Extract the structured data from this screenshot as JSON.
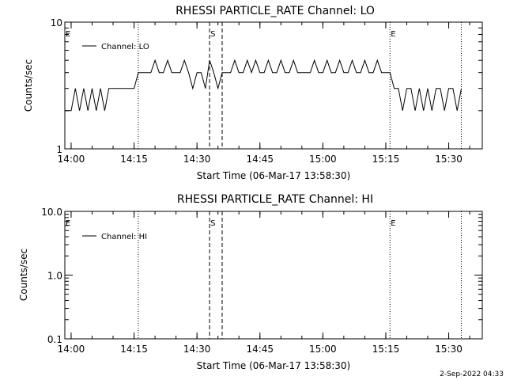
{
  "colors": {
    "background": "#ffffff",
    "foreground": "#000000"
  },
  "footer": {
    "timestamp": "2-Sep-2022 04:33"
  },
  "markers": {
    "dotted": [
      "14:16",
      "15:16",
      "15:33"
    ],
    "dashed": [
      "14:33",
      "14:36"
    ],
    "flags": [
      {
        "label": "E",
        "time": "13:58:30"
      },
      {
        "label": "S",
        "time": "14:33"
      },
      {
        "label": "E",
        "time": "15:16"
      }
    ]
  },
  "chart_data": [
    {
      "type": "line",
      "title": "RHESSI PARTICLE_RATE Channel: LO",
      "xlabel": "Start Time (06-Mar-17 13:58:30)",
      "ylabel": "Counts/sec",
      "y_scale": "log",
      "xlim": [
        "13:58:30",
        "15:38:00"
      ],
      "ylim": [
        1,
        10
      ],
      "x_ticks": [
        "14:00",
        "14:15",
        "14:30",
        "14:45",
        "15:00",
        "15:15",
        "15:30"
      ],
      "y_ticks": [
        "1",
        "10"
      ],
      "legend": "top-left",
      "series": [
        {
          "name": "Channel: LO",
          "x": [
            "13:58:30",
            "14:00",
            "14:01",
            "14:02",
            "14:03",
            "14:04",
            "14:05",
            "14:06",
            "14:07",
            "14:08",
            "14:09",
            "14:10",
            "14:11",
            "14:12",
            "14:13",
            "14:14",
            "14:15",
            "14:16",
            "14:17",
            "14:18",
            "14:19",
            "14:20",
            "14:21",
            "14:22",
            "14:23",
            "14:24",
            "14:25",
            "14:26",
            "14:27",
            "14:28",
            "14:29",
            "14:30",
            "14:31",
            "14:32",
            "14:33",
            "14:34",
            "14:35",
            "14:36",
            "14:37",
            "14:38",
            "14:39",
            "14:40",
            "14:41",
            "14:42",
            "14:43",
            "14:44",
            "14:45",
            "14:46",
            "14:47",
            "14:48",
            "14:49",
            "14:50",
            "14:51",
            "14:52",
            "14:53",
            "14:54",
            "14:55",
            "14:56",
            "14:57",
            "14:58",
            "14:59",
            "15:00",
            "15:01",
            "15:02",
            "15:03",
            "15:04",
            "15:05",
            "15:06",
            "15:07",
            "15:08",
            "15:09",
            "15:10",
            "15:11",
            "15:12",
            "15:13",
            "15:14",
            "15:15",
            "15:16",
            "15:17",
            "15:18",
            "15:19",
            "15:20",
            "15:21",
            "15:22",
            "15:23",
            "15:24",
            "15:25",
            "15:26",
            "15:27",
            "15:28",
            "15:29",
            "15:30",
            "15:31",
            "15:32",
            "15:33"
          ],
          "y": [
            2,
            2,
            3,
            2,
            3,
            2,
            3,
            2,
            3,
            2,
            3,
            3,
            3,
            3,
            3,
            3,
            3,
            4,
            4,
            4,
            4,
            5,
            4,
            4,
            5,
            4,
            4,
            4,
            5,
            4,
            3,
            4,
            4,
            3,
            5,
            4,
            3,
            4,
            4,
            4,
            5,
            4,
            4,
            5,
            4,
            5,
            4,
            4,
            5,
            4,
            4,
            5,
            4,
            4,
            5,
            4,
            4,
            4,
            4,
            5,
            4,
            4,
            5,
            4,
            4,
            5,
            4,
            4,
            5,
            4,
            4,
            5,
            4,
            4,
            5,
            4,
            4,
            4,
            3,
            3,
            2,
            3,
            3,
            2,
            3,
            2,
            3,
            2,
            3,
            3,
            2,
            3,
            3,
            2,
            3
          ]
        }
      ]
    },
    {
      "type": "line",
      "title": "RHESSI PARTICLE_RATE Channel: HI",
      "xlabel": "Start Time (06-Mar-17 13:58:30)",
      "ylabel": "Counts/sec",
      "y_scale": "log",
      "xlim": [
        "13:58:30",
        "15:38:00"
      ],
      "ylim": [
        0.1,
        10
      ],
      "x_ticks": [
        "14:00",
        "14:15",
        "14:30",
        "14:45",
        "15:00",
        "15:15",
        "15:30"
      ],
      "y_ticks": [
        "0.1",
        "1.0",
        "10.0"
      ],
      "legend": "top-left",
      "series": [
        {
          "name": "Channel: HI",
          "x": [],
          "y": []
        }
      ]
    }
  ]
}
